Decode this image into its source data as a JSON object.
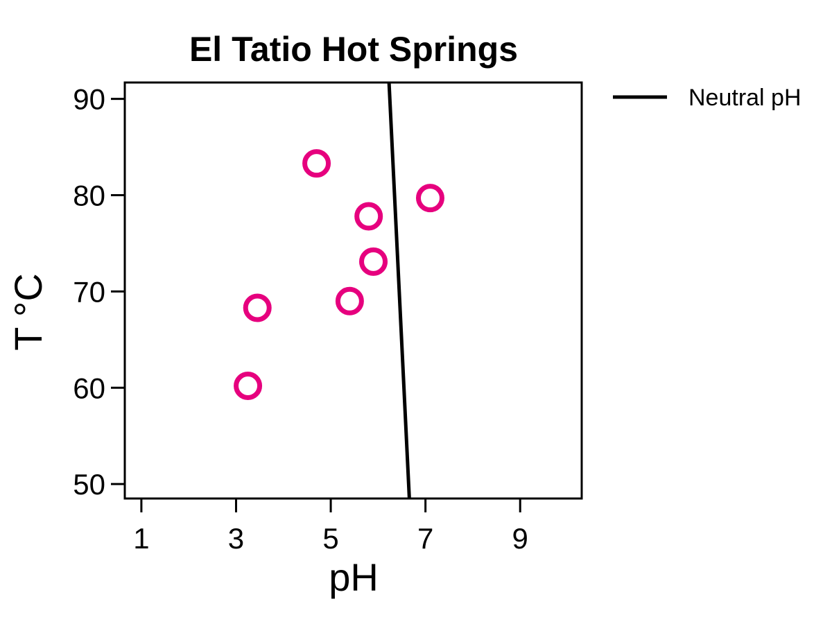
{
  "chart_data": {
    "type": "scatter",
    "title": "El Tatio Hot Springs",
    "xlabel": "pH",
    "ylabel": "T °C",
    "xlim": [
      0.65,
      10.3
    ],
    "ylim": [
      48.5,
      91.7
    ],
    "xticks": [
      1,
      3,
      5,
      7,
      9
    ],
    "yticks": [
      50,
      60,
      70,
      80,
      90
    ],
    "grid": false,
    "legend_position": "outside-top-right",
    "series": [
      {
        "type": "scatter",
        "marker": "open-circle",
        "color": "#E6007E",
        "points": [
          {
            "x": 3.25,
            "y": 60.2
          },
          {
            "x": 3.45,
            "y": 68.3
          },
          {
            "x": 4.7,
            "y": 83.3
          },
          {
            "x": 5.4,
            "y": 69.0
          },
          {
            "x": 5.8,
            "y": 77.8
          },
          {
            "x": 5.9,
            "y": 73.1
          },
          {
            "x": 7.1,
            "y": 79.7
          }
        ]
      },
      {
        "name": "Neutral pH",
        "type": "line",
        "color": "#000000",
        "points": [
          {
            "x": 6.23,
            "y": 91.7
          },
          {
            "x": 6.66,
            "y": 48.5
          }
        ]
      }
    ]
  }
}
